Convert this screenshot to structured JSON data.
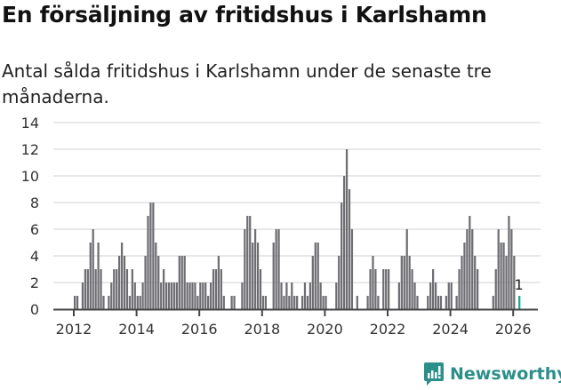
{
  "header": {
    "title": "En försäljning av fritidshus i Karlshamn",
    "subtitle": "Antal sålda fritidshus i Karlshamn under de senaste tre månaderna."
  },
  "logo": {
    "text": "Newsworthy",
    "color": "#2b8f8a"
  },
  "colors": {
    "bar": "#6e6d72",
    "highlight": "#1aa39a",
    "grid": "#e0e0e0",
    "axis": "#444444"
  },
  "chart_data": {
    "type": "bar",
    "title": "En försäljning av fritidshus i Karlshamn",
    "subtitle": "Antal sålda fritidshus i Karlshamn under de senaste tre månaderna.",
    "xlabel": "",
    "ylabel": "",
    "ylim": [
      0,
      14
    ],
    "yticks": [
      0,
      2,
      4,
      6,
      8,
      10,
      12,
      14
    ],
    "xticks": [
      "2012",
      "2014",
      "2016",
      "2018",
      "2020",
      "2022",
      "2024",
      "2026"
    ],
    "grid": true,
    "legend": null,
    "start": "2012-01",
    "frequency": "monthly",
    "values": [
      1,
      1,
      0,
      2,
      3,
      3,
      5,
      6,
      3,
      5,
      3,
      1,
      0,
      1,
      2,
      3,
      3,
      4,
      5,
      4,
      3,
      1,
      3,
      2,
      1,
      1,
      2,
      4,
      7,
      8,
      8,
      5,
      4,
      2,
      3,
      2,
      2,
      2,
      2,
      2,
      4,
      4,
      4,
      2,
      2,
      2,
      2,
      1,
      2,
      2,
      2,
      1,
      2,
      3,
      3,
      4,
      3,
      1,
      0,
      0,
      1,
      1,
      0,
      0,
      2,
      6,
      7,
      7,
      5,
      6,
      5,
      3,
      1,
      1,
      0,
      0,
      5,
      6,
      6,
      2,
      1,
      2,
      1,
      2,
      1,
      1,
      0,
      1,
      2,
      1,
      2,
      4,
      5,
      5,
      2,
      1,
      1,
      0,
      0,
      0,
      2,
      4,
      8,
      10,
      12,
      9,
      6,
      0,
      1,
      0,
      0,
      0,
      1,
      3,
      4,
      3,
      1,
      0,
      3,
      3,
      3,
      0,
      0,
      0,
      2,
      4,
      4,
      6,
      4,
      3,
      2,
      1,
      0,
      0,
      0,
      1,
      2,
      3,
      2,
      1,
      1,
      0,
      1,
      2,
      2,
      0,
      1,
      3,
      4,
      5,
      6,
      7,
      6,
      4,
      3,
      0,
      0,
      0,
      0,
      0,
      1,
      3,
      6,
      5,
      5,
      4,
      7,
      6,
      4,
      0,
      1
    ],
    "annotation": {
      "label": "1",
      "index": 170,
      "highlight": true
    }
  }
}
